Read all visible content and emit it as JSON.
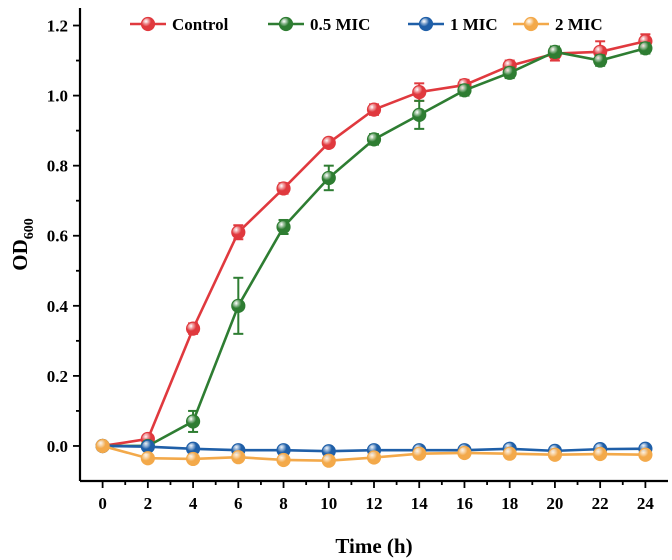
{
  "chart_data": {
    "type": "line",
    "title": "",
    "xlabel": "Time (h)",
    "ylabel_main": "OD",
    "ylabel_sub": "600",
    "xlim": [
      -1,
      25
    ],
    "ylim": [
      -0.1,
      1.25
    ],
    "x_ticks": [
      0,
      2,
      4,
      6,
      8,
      10,
      12,
      14,
      16,
      18,
      20,
      22,
      24
    ],
    "x_tick_labels": [
      "0",
      "2",
      "4",
      "6",
      "8",
      "10",
      "12",
      "14",
      "16",
      "18",
      "20",
      "22",
      "24"
    ],
    "y_ticks": [
      0.0,
      0.2,
      0.4,
      0.6,
      0.8,
      1.0,
      1.2
    ],
    "y_tick_labels": [
      "0.0",
      "0.2",
      "0.4",
      "0.6",
      "0.8",
      "1.0",
      "1.2"
    ],
    "legend_position": "top",
    "grid": false,
    "x": [
      0,
      2,
      4,
      6,
      8,
      10,
      12,
      14,
      16,
      18,
      20,
      22,
      24
    ],
    "series": [
      {
        "name": "Control",
        "color": "#e0393e",
        "values": [
          0.0,
          0.02,
          0.335,
          0.61,
          0.735,
          0.865,
          0.96,
          1.01,
          1.03,
          1.085,
          1.12,
          1.125,
          1.155
        ],
        "errors": [
          0.005,
          0.01,
          0.015,
          0.02,
          0.015,
          0.012,
          0.015,
          0.025,
          0.015,
          0.015,
          0.02,
          0.03,
          0.02
        ]
      },
      {
        "name": "0.5 MIC",
        "color": "#2e7d32",
        "values": [
          0.0,
          0.0,
          0.07,
          0.4,
          0.625,
          0.765,
          0.875,
          0.945,
          1.015,
          1.065,
          1.125,
          1.1,
          1.135
        ],
        "errors": [
          0.005,
          0.005,
          0.03,
          0.08,
          0.02,
          0.035,
          0.015,
          0.04,
          0.015,
          0.015,
          0.015,
          0.015,
          0.015
        ]
      },
      {
        "name": "1 MIC",
        "color": "#1f5fa8",
        "values": [
          0.0,
          -0.002,
          -0.008,
          -0.012,
          -0.012,
          -0.015,
          -0.012,
          -0.012,
          -0.012,
          -0.008,
          -0.014,
          -0.009,
          -0.008
        ],
        "errors": [
          0.005,
          0.005,
          0.005,
          0.005,
          0.005,
          0.005,
          0.005,
          0.005,
          0.005,
          0.005,
          0.005,
          0.005,
          0.005
        ]
      },
      {
        "name": "2 MIC",
        "color": "#f3a94a",
        "values": [
          0.0,
          -0.035,
          -0.037,
          -0.032,
          -0.04,
          -0.042,
          -0.033,
          -0.022,
          -0.02,
          -0.022,
          -0.025,
          -0.023,
          -0.025
        ],
        "errors": [
          0.005,
          0.006,
          0.006,
          0.006,
          0.006,
          0.006,
          0.006,
          0.008,
          0.006,
          0.006,
          0.006,
          0.006,
          0.006
        ]
      }
    ]
  }
}
